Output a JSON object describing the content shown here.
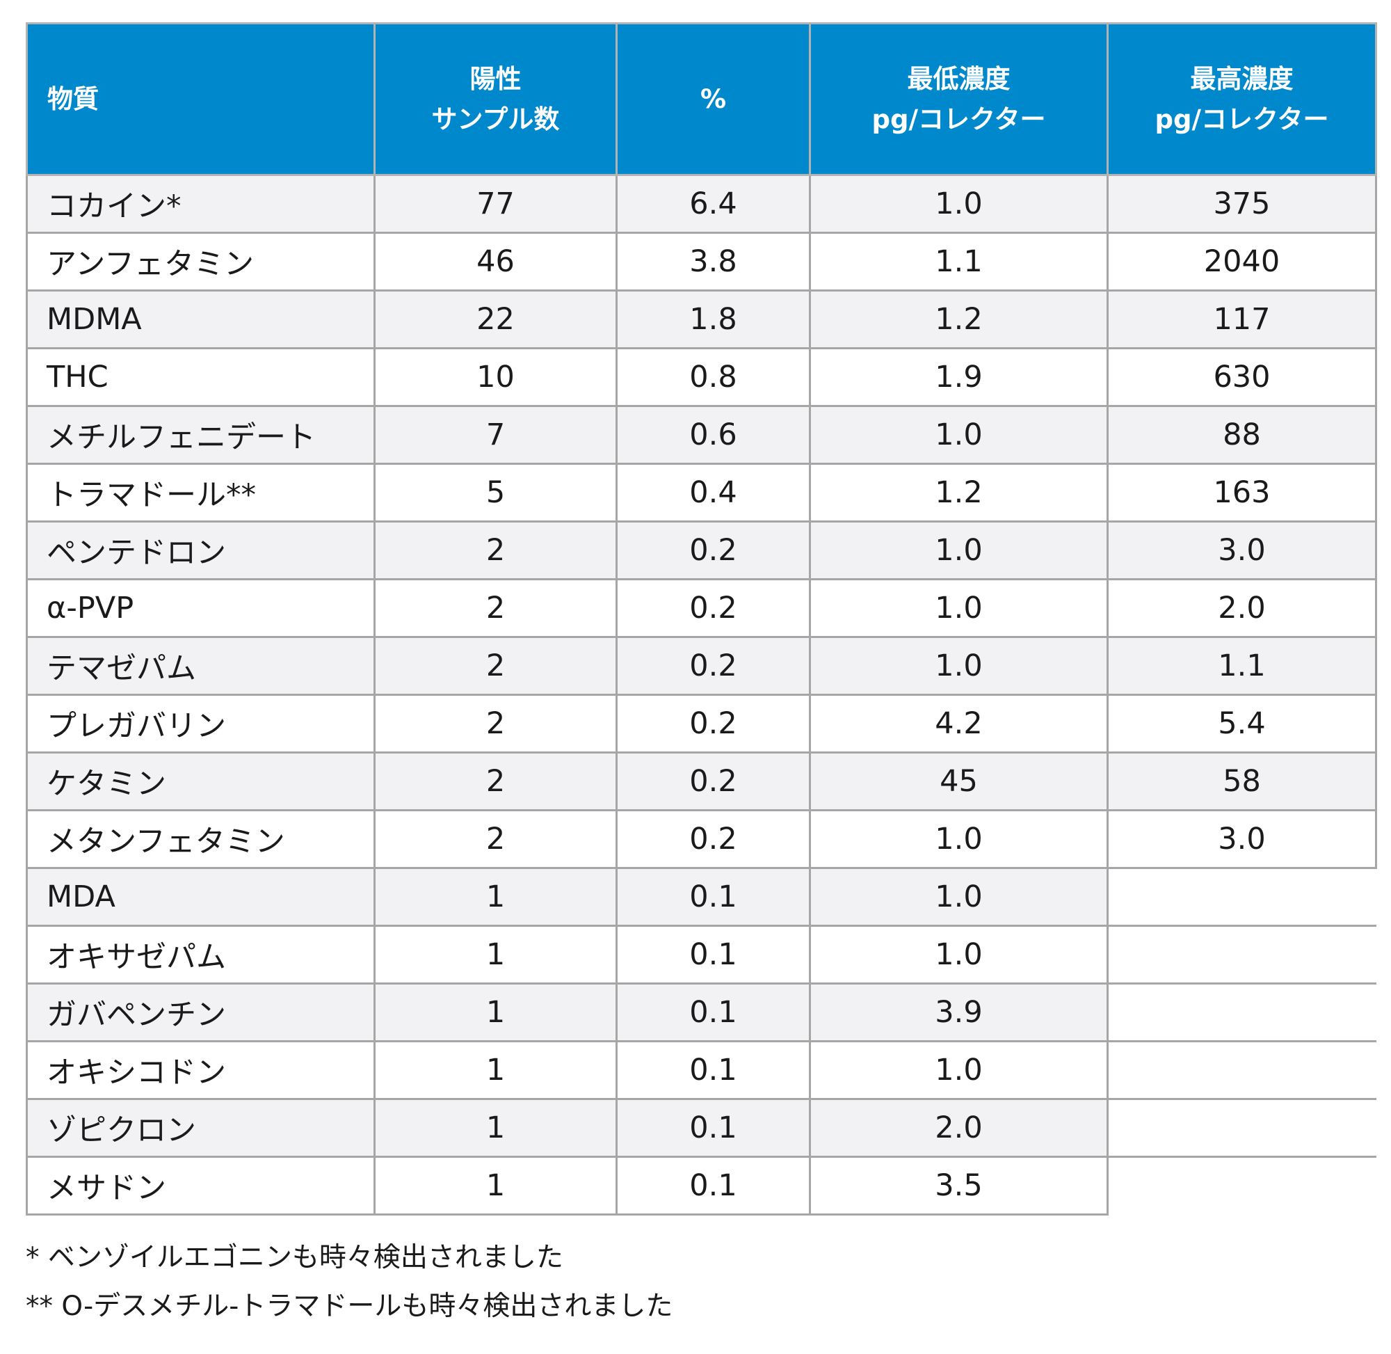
{
  "table": {
    "headers": [
      {
        "lines": [
          "物質"
        ]
      },
      {
        "lines": [
          "陽性",
          "サンプル数"
        ]
      },
      {
        "lines": [
          "%"
        ]
      },
      {
        "lines": [
          "最低濃度",
          "pg/コレクター"
        ]
      },
      {
        "lines": [
          "最高濃度",
          "pg/コレクター"
        ]
      }
    ],
    "rows": [
      [
        "コカイン*",
        "77",
        "6.4",
        "1.0",
        "375"
      ],
      [
        "アンフェタミン",
        "46",
        "3.8",
        "1.1",
        "2040"
      ],
      [
        "MDMA",
        "22",
        "1.8",
        "1.2",
        "117"
      ],
      [
        "THC",
        "10",
        "0.8",
        "1.9",
        "630"
      ],
      [
        "メチルフェニデート",
        "7",
        "0.6",
        "1.0",
        "88"
      ],
      [
        "トラマドール**",
        "5",
        "0.4",
        "1.2",
        "163"
      ],
      [
        "ペンテドロン",
        "2",
        "0.2",
        "1.0",
        "3.0"
      ],
      [
        "α-PVP",
        "2",
        "0.2",
        "1.0",
        "2.0"
      ],
      [
        "テマゼパム",
        "2",
        "0.2",
        "1.0",
        "1.1"
      ],
      [
        "プレガバリン",
        "2",
        "0.2",
        "4.2",
        "5.4"
      ],
      [
        "ケタミン",
        "2",
        "0.2",
        "45",
        "58"
      ],
      [
        "メタンフェタミン",
        "2",
        "0.2",
        "1.0",
        "3.0"
      ],
      [
        "MDA",
        "1",
        "0.1",
        "1.0",
        ""
      ],
      [
        "オキサゼパム",
        "1",
        "0.1",
        "1.0",
        ""
      ],
      [
        "ガバペンチン",
        "1",
        "0.1",
        "3.9",
        ""
      ],
      [
        "オキシコドン",
        "1",
        "0.1",
        "1.0",
        ""
      ],
      [
        "ゾピクロン",
        "1",
        "0.1",
        "2.0",
        ""
      ],
      [
        "メサドン",
        "1",
        "0.1",
        "3.5",
        ""
      ]
    ]
  },
  "footnotes": [
    "* ベンゾイルエゴニンも時々検出されました",
    "** O-デスメチル-トラマドールも時々検出されました"
  ],
  "colors": {
    "header_bg": "#0088cc",
    "header_text": "#ffffff",
    "row_alt_bg": "#f2f2f4",
    "border": "#a6a6a6"
  }
}
